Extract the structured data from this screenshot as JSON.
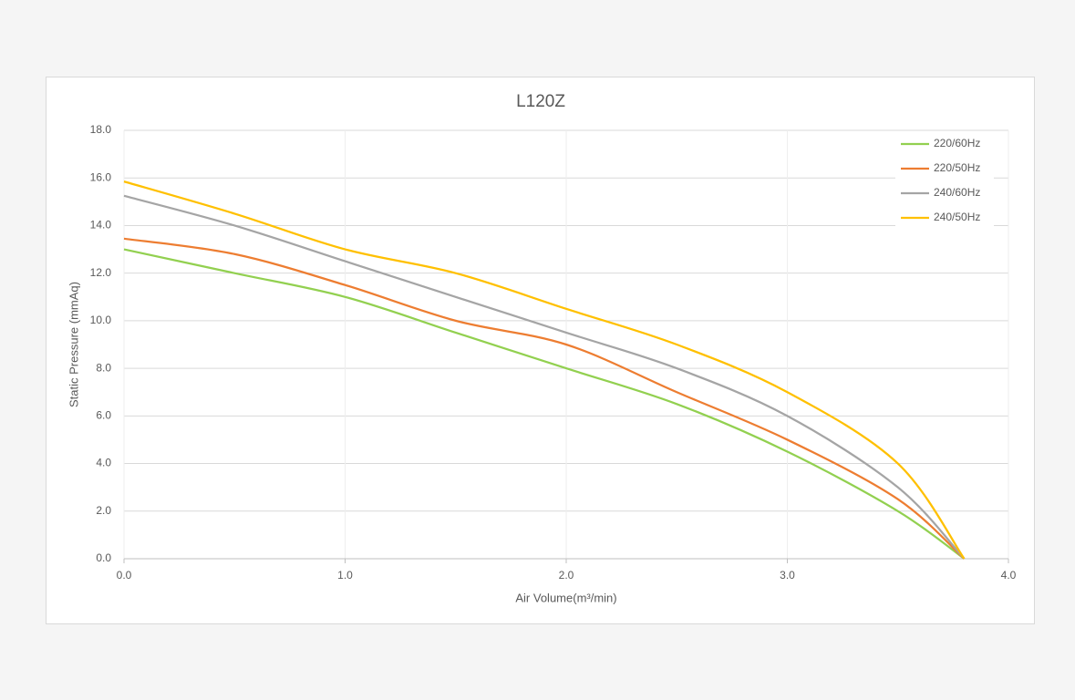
{
  "chart_data": {
    "type": "line",
    "title": "L120Z",
    "x_label": "Air Volume(m³/min)",
    "y_label": "Static Pressure (mmAq)",
    "x": [
      0,
      0.5,
      1.0,
      1.5,
      2.0,
      2.5,
      3.0,
      3.5,
      3.8
    ],
    "series": [
      {
        "name": "220/60Hz",
        "color": "#92d050",
        "values": [
          13.0,
          12.0,
          11.0,
          9.5,
          8.0,
          6.5,
          4.5,
          2.0,
          0
        ]
      },
      {
        "name": "220/50Hz",
        "color": "#ed7d31",
        "values": [
          13.45,
          12.8,
          11.5,
          10.0,
          9.0,
          7.0,
          5.0,
          2.5,
          0
        ]
      },
      {
        "name": "240/60Hz",
        "color": "#a5a5a5",
        "values": [
          15.25,
          14.0,
          12.5,
          11.0,
          9.5,
          8.0,
          6.0,
          3.0,
          0
        ]
      },
      {
        "name": "240/50Hz",
        "color": "#ffc000",
        "values": [
          15.85,
          14.5,
          13.0,
          12.0,
          10.5,
          9.0,
          7.0,
          4.0,
          0
        ]
      }
    ],
    "xlim": [
      0,
      4
    ],
    "xticks": [
      {
        "value": 0,
        "label": "0.0"
      },
      {
        "value": 1,
        "label": "1.0"
      },
      {
        "value": 2,
        "label": "2.0"
      },
      {
        "value": 3,
        "label": "3.0"
      },
      {
        "value": 4,
        "label": "4.0"
      }
    ],
    "ylim": [
      0,
      18
    ],
    "yticks": [
      {
        "value": 0,
        "label": "0.0"
      },
      {
        "value": 2,
        "label": "2.0"
      },
      {
        "value": 4,
        "label": "4.0"
      },
      {
        "value": 6,
        "label": "6.0"
      },
      {
        "value": 8,
        "label": "8.0"
      },
      {
        "value": 10,
        "label": "10.0"
      },
      {
        "value": 12,
        "label": "12.0"
      },
      {
        "value": 14,
        "label": "14.0"
      },
      {
        "value": 16,
        "label": "16.0"
      },
      {
        "value": 18,
        "label": "18.0"
      }
    ],
    "grid": true,
    "legend": "top-right"
  }
}
